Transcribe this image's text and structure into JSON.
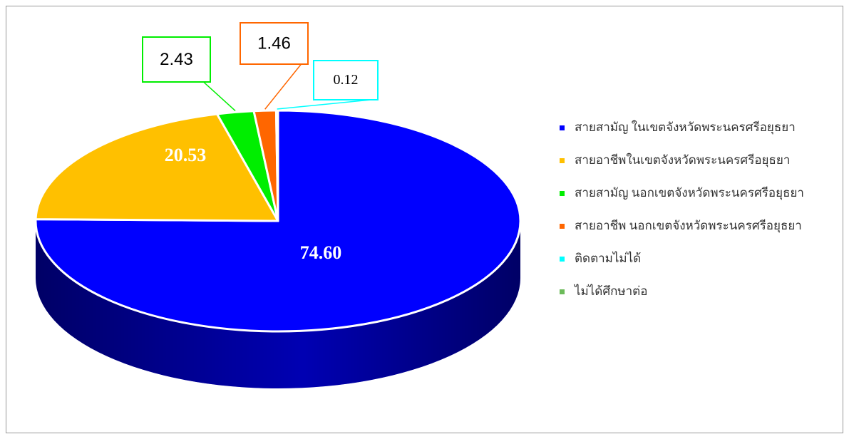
{
  "chart_data": {
    "type": "pie3d",
    "categories": [
      "สายสามัญ ในเขตจังหวัดพระนครศรีอยุธยา",
      "สายอาชีพในเขตจังหวัดพระนครศรีอยุธยา",
      "สายสามัญ นอกเขตจังหวัดพระนครศรีอยุธยา",
      "สายอาชีพ นอกเขตจังหวัดพระนครศรีอยุธยา",
      "ติดตามไม่ได้",
      "ไม่ได้ศึกษาต่อ"
    ],
    "values": [
      74.6,
      20.53,
      2.43,
      1.46,
      0.12,
      null
    ],
    "value_labels": [
      "74.60",
      "20.53",
      "2.43",
      "1.46",
      "0.12",
      null
    ],
    "colors": [
      "#0000ff",
      "#ffc000",
      "#00ee00",
      "#ff6600",
      "#00ffff",
      "#6cbb5a"
    ],
    "legend": "right"
  }
}
